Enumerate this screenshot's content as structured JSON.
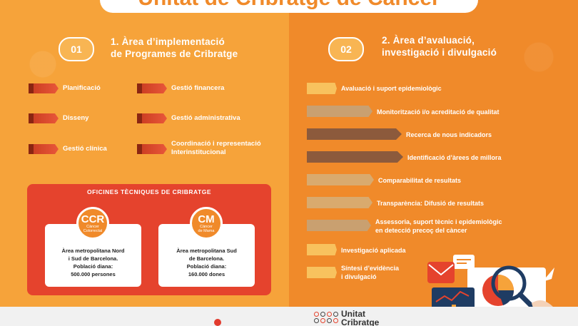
{
  "header": {
    "title": "Unitat de Cribratge de Càncer"
  },
  "left": {
    "number": "01",
    "title_lines": [
      "1. Àrea d’implementació",
      "de Programes de Cribratge"
    ],
    "items": [
      {
        "label": "Planificació"
      },
      {
        "label": "Gestió financera"
      },
      {
        "label": "Disseny"
      },
      {
        "label": "Gestió administrativa"
      },
      {
        "label": "Gestió clínica"
      },
      {
        "label_lines": [
          "Coordinació i representació",
          "Interinstitucional"
        ]
      }
    ],
    "offices": {
      "title": "OFICINES TÈCNIQUES DE CRIBRATGE",
      "cards": [
        {
          "abbr": "CCR",
          "full_lines": [
            "Càncer",
            "Colorrectal"
          ],
          "lines": [
            "Àrea metropolitana Nord",
            "i Sud de Barcelona.",
            "Població diana:",
            "500.000 persones"
          ]
        },
        {
          "abbr": "CM",
          "full_lines": [
            "Càncer",
            "de Mama"
          ],
          "lines": [
            "Àrea metropolitana Sud",
            "de Barcelona.",
            "Població diana:",
            "160.000 dones"
          ]
        }
      ]
    }
  },
  "right": {
    "number": "02",
    "title_lines": [
      "2. Àrea d’avaluació,",
      "investigació i divulgació"
    ],
    "items": [
      {
        "label": "Avaluació i suport epidemiològic"
      },
      {
        "label": "Monitorització i/o acreditació de qualitat"
      },
      {
        "label": "Recerca de nous indicadors"
      },
      {
        "label": "Identificació d’àrees de millora"
      },
      {
        "label": "Comparabilitat de resultats"
      },
      {
        "label": "Transparència: Difusió de resultats"
      },
      {
        "label_lines": [
          "Assessoria, suport tècnic i epidemiològic",
          "en detecció precoç del càncer"
        ]
      },
      {
        "label": "Investigació aplicada"
      },
      {
        "label_lines": [
          "Síntesi d’evidència",
          "i divulgació"
        ]
      }
    ]
  },
  "footer": {
    "logo_lines": [
      "Unitat",
      "Cribratge"
    ]
  },
  "colors": {
    "orange": "#f6a33a",
    "dark_orange": "#f08a2a",
    "red": "#e5432d",
    "brown": "#8c5a3c",
    "tan": "#c9a070"
  }
}
